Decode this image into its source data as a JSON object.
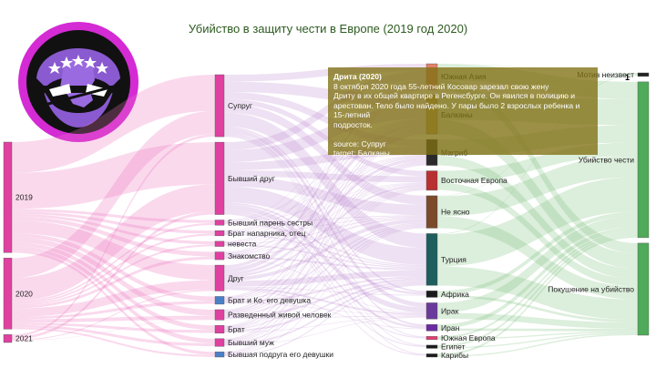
{
  "chart_data": {
    "type": "sankey",
    "title": "Убийство в защиту чести в Европе (2019 год 2020)",
    "columns": [
      {
        "nodes": [
          {
            "label": "2019",
            "value": 28,
            "color": "#e040a0"
          },
          {
            "label": "2020",
            "value": 18,
            "color": "#e040a0"
          },
          {
            "label": "2021",
            "value": 2,
            "color": "#e040a0"
          }
        ]
      },
      {
        "nodes": [
          {
            "label": "Супруг",
            "value": 12,
            "color": "#e040a0"
          },
          {
            "label": "Бывший друг",
            "value": 14,
            "color": "#e040a0"
          },
          {
            "label": "Бывший парень сестры",
            "value": 1,
            "color": "#e040a0"
          },
          {
            "label": "Брат напарника, отец",
            "value": 1,
            "color": "#e040a0"
          },
          {
            "label": "невеста",
            "value": 1,
            "color": "#e040a0"
          },
          {
            "label": "Знакомство",
            "value": 1.5,
            "color": "#e040a0"
          },
          {
            "label": "Друг",
            "value": 5,
            "color": "#e040a0"
          },
          {
            "label": "Брат и Ко. его девушка",
            "value": 1.5,
            "color": "#4a80c8"
          },
          {
            "label": "Разведенный живой человек",
            "value": 2,
            "color": "#e040a0"
          },
          {
            "label": "Брат",
            "value": 1.5,
            "color": "#e040a0"
          },
          {
            "label": "Бывший муж",
            "value": 1.5,
            "color": "#e040a0"
          },
          {
            "label": "Бывшая подруга его девушки",
            "value": 1,
            "color": "#4a80c8"
          }
        ]
      },
      {
        "nodes": [
          {
            "label": "Южная Азия",
            "value": 4,
            "color": "#e0806a"
          },
          {
            "label": "Балканы",
            "value": 6,
            "color": "#c4a45a"
          },
          {
            "label": "Магриб",
            "value": 4,
            "color": "#2a2a2a"
          },
          {
            "label": "Восточная Европа",
            "value": 3,
            "color": "#b83030"
          },
          {
            "label": "Не ясно",
            "value": 5,
            "color": "#7a4a2a"
          },
          {
            "label": "Турция",
            "value": 8,
            "color": "#1e5e5e"
          },
          {
            "label": "Африка",
            "value": 1,
            "color": "#1a1a1a"
          },
          {
            "label": "Ирак",
            "value": 2.5,
            "color": "#6a3a9a"
          },
          {
            "label": "Иран",
            "value": 1,
            "color": "#6a2aa0"
          },
          {
            "label": "Южная Европа",
            "value": 0.5,
            "color": "#e04070"
          },
          {
            "label": "Египет",
            "value": 0.5,
            "color": "#1a1a1a"
          },
          {
            "label": "Карибы",
            "value": 0.5,
            "color": "#1a1a1a"
          }
        ]
      },
      {
        "nodes": [
          {
            "label": "Мотив неизвест",
            "value": 0.5,
            "color": "#222222"
          },
          {
            "label": "Убийство чести",
            "value": 22,
            "color": "#4faa5a"
          },
          {
            "label": "Покушение на убийство",
            "value": 13,
            "color": "#4faa5a"
          }
        ]
      }
    ],
    "tooltip": {
      "title": "Дрита (2020)",
      "lines": [
        "8 октября 2020 года 55-летний Косовар зарезал свою жену",
        "Дриту в их общей квартире в Регенсбурге. Он явился в полицию и",
        "арестован. Тело было найдено. У пары было 2 взрослых ребенка и 15-летний",
        "подросток."
      ],
      "source": "source: Супруг",
      "target": "target: Балканы"
    },
    "corner_label": "1"
  }
}
